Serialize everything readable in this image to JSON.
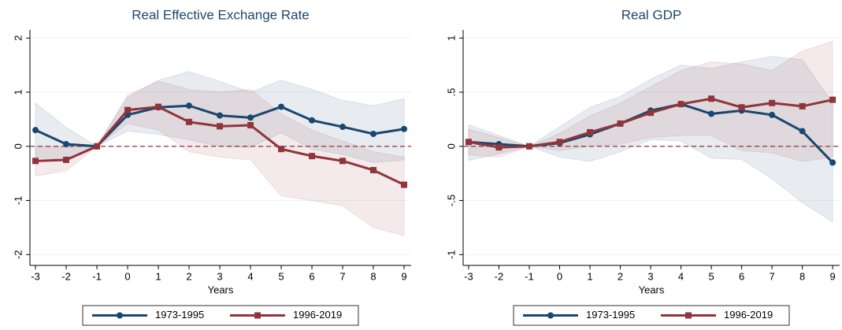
{
  "chart_data": [
    {
      "type": "line",
      "title": "Real Effective Exchange Rate",
      "xlabel": "Years",
      "x": [
        -3,
        -2,
        -1,
        0,
        1,
        2,
        3,
        4,
        5,
        6,
        7,
        8,
        9
      ],
      "xlim": [
        -3.18,
        9.23
      ],
      "xticks": [
        -3,
        -2,
        -1,
        0,
        1,
        2,
        3,
        4,
        5,
        6,
        7,
        8,
        9
      ],
      "ylim": [
        -2.2,
        2.15
      ],
      "yticks": [
        -2,
        -1,
        0,
        1,
        2
      ],
      "grid": true,
      "reference_line": 0,
      "series": [
        {
          "name": "1973-1995",
          "color": "#1a476f",
          "marker": "circle",
          "values": [
            0.3,
            0.04,
            0,
            0.58,
            0.72,
            0.75,
            0.57,
            0.53,
            0.73,
            0.48,
            0.36,
            0.23,
            0.32
          ],
          "lower": [
            -0.2,
            -0.25,
            0,
            0.28,
            0.22,
            0.12,
            0,
            -0.02,
            0.25,
            -0.05,
            -0.15,
            -0.3,
            -0.25
          ],
          "upper": [
            0.8,
            0.35,
            0,
            0.9,
            1.22,
            1.38,
            1.2,
            1.0,
            1.22,
            1.05,
            0.85,
            0.75,
            0.88
          ]
        },
        {
          "name": "1996-2019",
          "color": "#90353b",
          "marker": "square",
          "values": [
            -0.27,
            -0.25,
            0,
            0.67,
            0.73,
            0.45,
            0.37,
            0.39,
            -0.05,
            -0.18,
            -0.27,
            -0.44,
            -0.71
          ],
          "lower": [
            -0.55,
            -0.45,
            0,
            0.42,
            0.3,
            -0.1,
            -0.2,
            -0.25,
            -0.92,
            -1.0,
            -1.1,
            -1.5,
            -1.65
          ],
          "upper": [
            0,
            -0.02,
            0,
            0.95,
            1.2,
            1.05,
            1.0,
            1.05,
            0.6,
            0.3,
            0.1,
            -0.1,
            -0.2
          ]
        }
      ]
    },
    {
      "type": "line",
      "title": "Real GDP",
      "xlabel": "Years",
      "x": [
        -3,
        -2,
        -1,
        0,
        1,
        2,
        3,
        4,
        5,
        6,
        7,
        8,
        9
      ],
      "xlim": [
        -3.18,
        9.23
      ],
      "xticks": [
        -3,
        -2,
        -1,
        0,
        1,
        2,
        3,
        4,
        5,
        6,
        7,
        8,
        9
      ],
      "ylim": [
        -1.1,
        1.075
      ],
      "yticks": [
        -1,
        {
          "value": -0.5,
          "label": "-.5"
        },
        0,
        {
          "value": 0.5,
          "label": ".5"
        },
        1
      ],
      "grid": true,
      "reference_line": 0,
      "series": [
        {
          "name": "1973-1995",
          "color": "#1a476f",
          "marker": "circle",
          "values": [
            0.04,
            0.02,
            0,
            0.03,
            0.11,
            0.21,
            0.33,
            0.39,
            0.3,
            0.33,
            0.29,
            0.14,
            -0.15
          ],
          "lower": [
            -0.13,
            -0.07,
            0,
            -0.1,
            -0.14,
            -0.05,
            0.06,
            0.05,
            -0.11,
            -0.12,
            -0.3,
            -0.52,
            -0.7
          ],
          "upper": [
            0.2,
            0.1,
            0,
            0.18,
            0.36,
            0.46,
            0.62,
            0.75,
            0.72,
            0.78,
            0.83,
            0.8,
            0.4
          ]
        },
        {
          "name": "1996-2019",
          "color": "#90353b",
          "marker": "square",
          "values": [
            0.04,
            -0.01,
            0,
            0.04,
            0.13,
            0.21,
            0.31,
            0.39,
            0.44,
            0.36,
            0.4,
            0.37,
            0.43
          ],
          "lower": [
            -0.08,
            -0.1,
            0,
            -0.04,
            0,
            0.02,
            0.08,
            0.1,
            0.1,
            -0.04,
            -0.06,
            -0.14,
            -0.1
          ],
          "upper": [
            0.16,
            0.08,
            0,
            0.12,
            0.28,
            0.4,
            0.55,
            0.7,
            0.78,
            0.76,
            0.7,
            0.88,
            0.97
          ]
        }
      ]
    }
  ]
}
